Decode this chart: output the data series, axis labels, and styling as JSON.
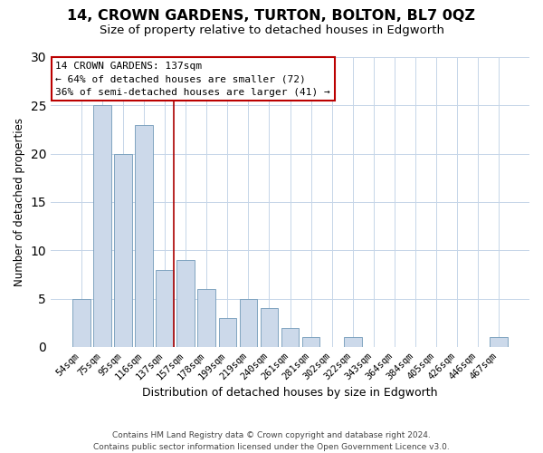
{
  "title": "14, CROWN GARDENS, TURTON, BOLTON, BL7 0QZ",
  "subtitle": "Size of property relative to detached houses in Edgworth",
  "xlabel": "Distribution of detached houses by size in Edgworth",
  "ylabel": "Number of detached properties",
  "bar_labels": [
    "54sqm",
    "75sqm",
    "95sqm",
    "116sqm",
    "137sqm",
    "157sqm",
    "178sqm",
    "199sqm",
    "219sqm",
    "240sqm",
    "261sqm",
    "281sqm",
    "302sqm",
    "322sqm",
    "343sqm",
    "364sqm",
    "384sqm",
    "405sqm",
    "426sqm",
    "446sqm",
    "467sqm"
  ],
  "bar_values": [
    5,
    25,
    20,
    23,
    8,
    9,
    6,
    3,
    5,
    4,
    2,
    1,
    0,
    1,
    0,
    0,
    0,
    0,
    0,
    0,
    1
  ],
  "bar_fill_color": "#ccd9ea",
  "bar_edge_color": "#7099b8",
  "highlight_index": 4,
  "highlight_line_color": "#aa0000",
  "ylim": [
    0,
    30
  ],
  "yticks": [
    0,
    5,
    10,
    15,
    20,
    25,
    30
  ],
  "annotation_title": "14 CROWN GARDENS: 137sqm",
  "annotation_line1": "← 64% of detached houses are smaller (72)",
  "annotation_line2": "36% of semi-detached houses are larger (41) →",
  "annotation_box_facecolor": "#ffffff",
  "annotation_box_edgecolor": "#bb0000",
  "footer_line1": "Contains HM Land Registry data © Crown copyright and database right 2024.",
  "footer_line2": "Contains public sector information licensed under the Open Government Licence v3.0.",
  "background_color": "#ffffff",
  "grid_color": "#c5d5e8",
  "title_fontsize": 11.5,
  "subtitle_fontsize": 9.5,
  "ylabel_fontsize": 8.5,
  "xlabel_fontsize": 9,
  "tick_fontsize": 7.5,
  "annotation_fontsize": 8,
  "footer_fontsize": 6.5
}
